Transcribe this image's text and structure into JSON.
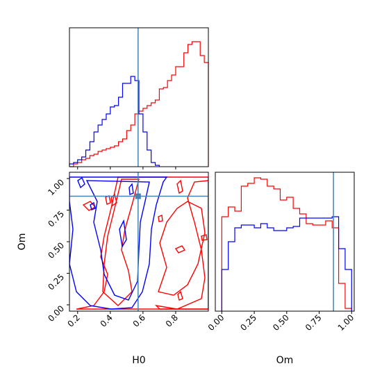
{
  "chart_data": {
    "type": "corner",
    "parameters": [
      "H0",
      "Om"
    ],
    "truth": {
      "H0": 0.57,
      "Om": 0.86
    },
    "colors": {
      "red": "#ff0000",
      "blue": "#0000ff",
      "truth": "#4682b4"
    },
    "hist_h0": {
      "xlim": [
        0.15,
        1.0
      ],
      "ticks": [
        0.2,
        0.4,
        0.6,
        0.8
      ],
      "tick_labels": [
        "0.2",
        "0.4",
        "0.6",
        "0.8"
      ],
      "ymax": 1.0,
      "red": {
        "edges": [
          0.15,
          0.175,
          0.2,
          0.225,
          0.25,
          0.275,
          0.3,
          0.325,
          0.35,
          0.375,
          0.4,
          0.425,
          0.45,
          0.475,
          0.5,
          0.525,
          0.55,
          0.575,
          0.6,
          0.625,
          0.65,
          0.675,
          0.7,
          0.725,
          0.75,
          0.775,
          0.8,
          0.825,
          0.85,
          0.875,
          0.9,
          0.925,
          0.95,
          0.975,
          1.0
        ],
        "values": [
          0.0,
          0.02,
          0.03,
          0.05,
          0.06,
          0.08,
          0.09,
          0.11,
          0.12,
          0.13,
          0.14,
          0.15,
          0.18,
          0.2,
          0.26,
          0.3,
          0.38,
          0.4,
          0.42,
          0.44,
          0.46,
          0.48,
          0.56,
          0.57,
          0.62,
          0.66,
          0.72,
          0.72,
          0.82,
          0.88,
          0.9,
          0.9,
          0.8,
          0.75
        ]
      },
      "blue": {
        "edges": [
          0.15,
          0.175,
          0.2,
          0.225,
          0.25,
          0.275,
          0.3,
          0.325,
          0.35,
          0.375,
          0.4,
          0.425,
          0.45,
          0.475,
          0.5,
          0.525,
          0.55,
          0.575,
          0.6,
          0.625,
          0.65,
          0.675,
          0.7
        ],
        "values": [
          0.02,
          0.03,
          0.05,
          0.07,
          0.12,
          0.18,
          0.25,
          0.3,
          0.34,
          0.38,
          0.43,
          0.44,
          0.5,
          0.6,
          0.6,
          0.65,
          0.62,
          0.38,
          0.25,
          0.12,
          0.03,
          0.01
        ]
      }
    },
    "hist_om": {
      "xlim": [
        -0.05,
        1.02
      ],
      "ticks": [
        0.0,
        0.25,
        0.5,
        0.75,
        1.0
      ],
      "tick_labels": [
        "0.00",
        "0.25",
        "0.50",
        "0.75",
        "1.00"
      ],
      "ymax": 1.0,
      "red": {
        "edges": [
          0.0,
          0.05,
          0.1,
          0.15,
          0.2,
          0.25,
          0.3,
          0.35,
          0.4,
          0.45,
          0.5,
          0.55,
          0.6,
          0.65,
          0.7,
          0.75,
          0.8,
          0.85,
          0.9,
          0.95,
          1.0
        ],
        "values": [
          0.68,
          0.75,
          0.72,
          0.9,
          0.92,
          0.96,
          0.95,
          0.9,
          0.88,
          0.8,
          0.82,
          0.74,
          0.7,
          0.63,
          0.62,
          0.62,
          0.65,
          0.6,
          0.2,
          0.02
        ]
      },
      "blue": {
        "edges": [
          0.0,
          0.05,
          0.1,
          0.15,
          0.2,
          0.25,
          0.3,
          0.35,
          0.4,
          0.45,
          0.5,
          0.55,
          0.6,
          0.65,
          0.7,
          0.75,
          0.8,
          0.85,
          0.9,
          0.95,
          1.0
        ],
        "values": [
          0.3,
          0.5,
          0.6,
          0.62,
          0.62,
          0.6,
          0.63,
          0.6,
          0.58,
          0.58,
          0.6,
          0.61,
          0.67,
          0.67,
          0.67,
          0.67,
          0.67,
          0.68,
          0.45,
          0.3
        ]
      }
    },
    "contour": {
      "xlim": [
        0.15,
        1.0
      ],
      "ylim": [
        -0.05,
        1.05
      ],
      "xticks": [
        0.2,
        0.4,
        0.6,
        0.8
      ],
      "xtick_labels": [
        "0.2",
        "0.4",
        "0.6",
        "0.8"
      ],
      "yticks": [
        0.0,
        0.25,
        0.5,
        0.75,
        1.0
      ],
      "ytick_labels": [
        "0.00",
        "0.25",
        "0.50",
        "0.75",
        "1.00"
      ],
      "xlabel": "H0",
      "ylabel": "Om"
    }
  }
}
